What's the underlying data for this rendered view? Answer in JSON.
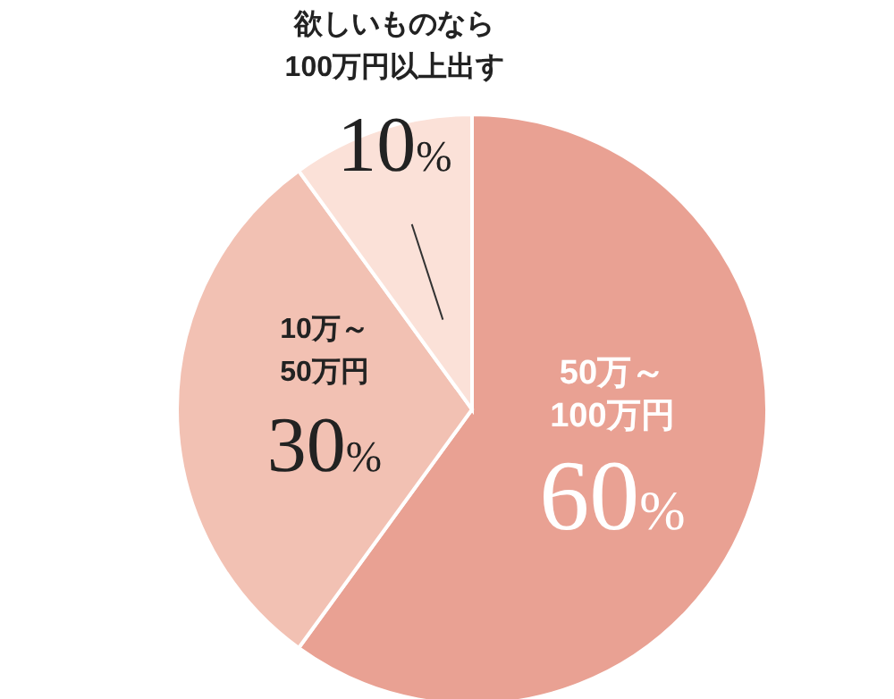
{
  "chart_data": {
    "type": "pie",
    "categories": [
      "50万～\n100万円",
      "10万～\n50万円",
      "欲しいものなら\n100万円以上出す"
    ],
    "values": [
      60,
      30,
      10
    ],
    "value_labels": [
      "60%",
      "30%",
      "10%"
    ],
    "colors": [
      "#e9a193",
      "#f2c1b3",
      "#fbe1d8"
    ]
  }
}
